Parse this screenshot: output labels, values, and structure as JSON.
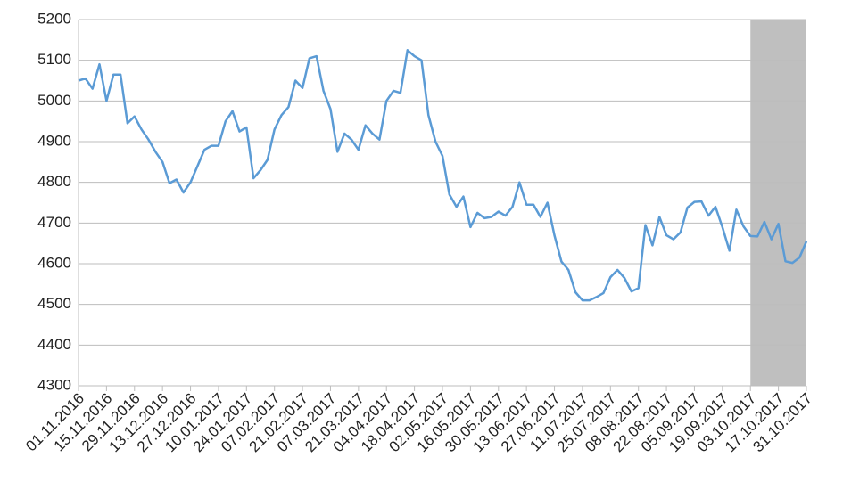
{
  "chart_data": {
    "type": "line",
    "categories": [
      "01.11.2016",
      null,
      null,
      null,
      "15.11.2016",
      null,
      null,
      null,
      "29.11.2016",
      null,
      null,
      null,
      "13.12.2016",
      null,
      null,
      null,
      "27.12.2016",
      null,
      null,
      null,
      "10.01.2017",
      null,
      null,
      null,
      "24.01.2017",
      null,
      null,
      null,
      "07.02.2017",
      null,
      null,
      null,
      "21.02.2017",
      null,
      null,
      null,
      "07.03.2017",
      null,
      null,
      null,
      "21.03.2017",
      null,
      null,
      null,
      "04.04.2017",
      null,
      null,
      null,
      "18.04.2017",
      null,
      null,
      null,
      "02.05.2017",
      null,
      null,
      null,
      "16.05.2017",
      null,
      null,
      null,
      "30.05.2017",
      null,
      null,
      null,
      "13.06.2017",
      null,
      null,
      null,
      "27.06.2017",
      null,
      null,
      null,
      "11.07.2017",
      null,
      null,
      null,
      "25.07.2017",
      null,
      null,
      null,
      "08.08.2017",
      null,
      null,
      null,
      "22.08.2017",
      null,
      null,
      null,
      "05.09.2017",
      null,
      null,
      null,
      "19.09.2017",
      null,
      null,
      null,
      "03.10.2017",
      null,
      null,
      null,
      "17.10.2017",
      null,
      null,
      null,
      "31.10.2017"
    ],
    "series": [
      {
        "color": "#5b9bd5",
        "values": [
          5050,
          5055,
          5030,
          5090,
          5000,
          5065,
          5065,
          4945,
          4962,
          4930,
          4905,
          4875,
          4850,
          4798,
          4807,
          4775,
          4800,
          4840,
          4880,
          4890,
          4890,
          4950,
          4975,
          4925,
          4935,
          4810,
          4830,
          4855,
          4930,
          4965,
          4985,
          5050,
          5032,
          5105,
          5110,
          5025,
          4980,
          4875,
          4920,
          4905,
          4880,
          4940,
          4920,
          4905,
          5000,
          5025,
          5020,
          5125,
          5110,
          5100,
          4965,
          4900,
          4865,
          4770,
          4740,
          4765,
          4690,
          4725,
          4712,
          4715,
          4728,
          4718,
          4740,
          4800,
          4745,
          4745,
          4715,
          4750,
          4670,
          4605,
          4585,
          4530,
          4510,
          4510,
          4518,
          4528,
          4567,
          4585,
          4565,
          4532,
          4540,
          4695,
          4645,
          4715,
          4670,
          4660,
          4677,
          4738,
          4752,
          4753,
          4718,
          4740,
          4690,
          4632,
          4733,
          4692,
          4668,
          4667,
          4703,
          4660,
          4698,
          4606,
          4602,
          4615,
          4655
        ]
      }
    ],
    "ylim": [
      4300,
      5200
    ],
    "yticks": [
      4300,
      4400,
      4500,
      4600,
      4700,
      4800,
      4900,
      5000,
      5100,
      5200
    ],
    "grid": true,
    "shaded_from": "03.10.2017",
    "shade_color": "#bfbfbf"
  }
}
